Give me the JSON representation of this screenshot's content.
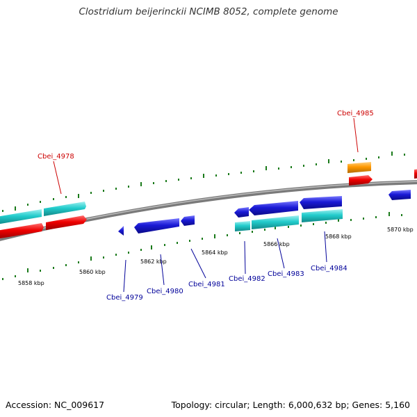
{
  "title": "Clostridium beijerinckii NCIMB 8052, complete genome",
  "footer": {
    "accession": "Accession: NC_009617",
    "summary": "Topology: circular; Length: 6,000,632 bp; Genes: 5,160"
  },
  "colors": {
    "forward_gene": "#ee0000",
    "forward_cds": "#22cccc",
    "reverse_gene": "#1a1ad6",
    "reverse_cds": "#22cccc",
    "misc_feature": "#ff9900",
    "backbone": "#888888",
    "tick": "#1a7a1a",
    "label_red": "#cc0000",
    "label_blue": "#000099"
  },
  "scale_labels": [
    "5858 kbp",
    "5860 kbp",
    "5862 kbp",
    "5864 kbp",
    "5866 kbp",
    "5868 kbp",
    "5870 kbp"
  ],
  "gene_labels": {
    "cbei_4978": "Cbei_4978",
    "cbei_4979": "Cbei_4979",
    "cbei_4980": "Cbei_4980",
    "cbei_4981": "Cbei_4981",
    "cbei_4982": "Cbei_4982",
    "cbei_4983": "Cbei_4983",
    "cbei_4984": "Cbei_4984",
    "cbei_4985": "Cbei_4985"
  }
}
